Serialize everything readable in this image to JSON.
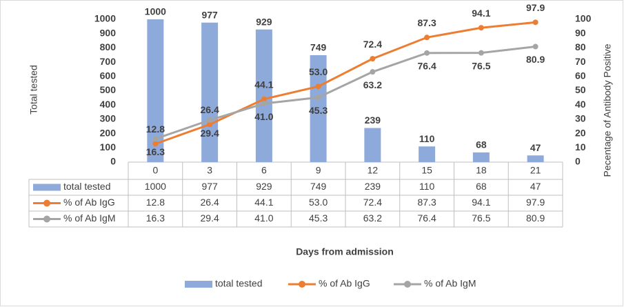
{
  "chart_data": {
    "type": "bar-line-table",
    "y_label": "Total tested",
    "y2_label": "Pecentage of Antibody Positive",
    "x_label": "Days from admission",
    "categories": [
      "0",
      "3",
      "6",
      "9",
      "12",
      "15",
      "18",
      "21"
    ],
    "series": [
      {
        "name": "total tested",
        "type": "bar",
        "color": "#8eaadb",
        "values": [
          1000,
          977,
          929,
          749,
          239,
          110,
          68,
          47
        ]
      },
      {
        "name": "% of Ab IgG",
        "type": "line",
        "axis": "y2",
        "color": "#ed7d31",
        "values": [
          12.8,
          26.4,
          44.1,
          53.0,
          72.4,
          87.3,
          94.1,
          97.9
        ],
        "value_labels": [
          "12.8",
          "26.4",
          "44.1",
          "53.0",
          "72.4",
          "87.3",
          "94.1",
          "97.9"
        ]
      },
      {
        "name": "% of Ab IgM",
        "type": "line",
        "axis": "y2",
        "color": "#a5a5a5",
        "values": [
          16.3,
          29.4,
          41.0,
          45.3,
          63.2,
          76.4,
          76.5,
          80.9
        ],
        "value_labels": [
          "16.3",
          "29.4",
          "41.0",
          "45.3",
          "63.2",
          "76.4",
          "76.5",
          "80.9"
        ]
      }
    ],
    "ylim": [
      0,
      1000
    ],
    "yticks": [
      0,
      100,
      200,
      300,
      400,
      500,
      600,
      700,
      800,
      900,
      1000
    ],
    "y2lim": [
      0,
      100
    ],
    "y2ticks": [
      0,
      10,
      20,
      30,
      40,
      50,
      60,
      70,
      80,
      90,
      100
    ],
    "legend": "bottom"
  }
}
